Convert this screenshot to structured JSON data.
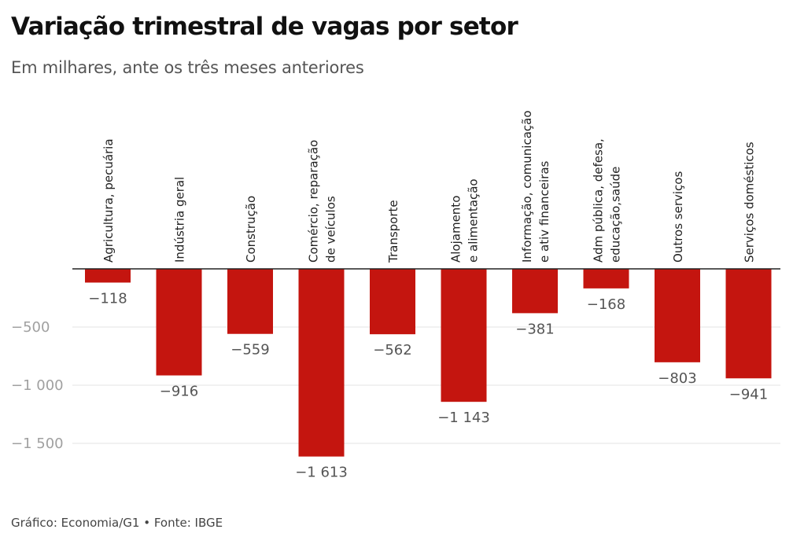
{
  "chart_data": {
    "type": "bar",
    "title": "Variação trimestral de vagas por setor",
    "subtitle": "Em milhares, ante os três meses anteriores",
    "categories": [
      [
        "Agricultura, pecuária"
      ],
      [
        "Indústria geral"
      ],
      [
        "Construção"
      ],
      [
        "Comércio, reparação",
        "de veículos"
      ],
      [
        "Transporte"
      ],
      [
        "Alojamento",
        "e alimentação"
      ],
      [
        "Informação, comunicação",
        "e ativ financeiras"
      ],
      [
        "Adm pública, defesa,",
        "educação,saúde"
      ],
      [
        "Outros serviços"
      ],
      [
        "Serviços domésticos"
      ]
    ],
    "values": [
      -118,
      -916,
      -559,
      -1613,
      -562,
      -1143,
      -381,
      -168,
      -803,
      -941
    ],
    "value_labels": [
      "−118",
      "−916",
      "−559",
      "−1 613",
      "−562",
      "−1 143",
      "−381",
      "−168",
      "−803",
      "−941"
    ],
    "y_ticks": [
      -500,
      -1000,
      -1500
    ],
    "y_tick_labels": [
      "−500",
      "−1 000",
      "−1 500"
    ],
    "ylim": [
      -1750,
      0
    ],
    "xlabel": "",
    "ylabel": "",
    "grid": true,
    "colors": {
      "bar": "#c4150f",
      "grid": "#e3e3e3",
      "zero_line": "#222222"
    }
  },
  "footer": "Gráfico: Economia/G1 • Fonte: IBGE"
}
